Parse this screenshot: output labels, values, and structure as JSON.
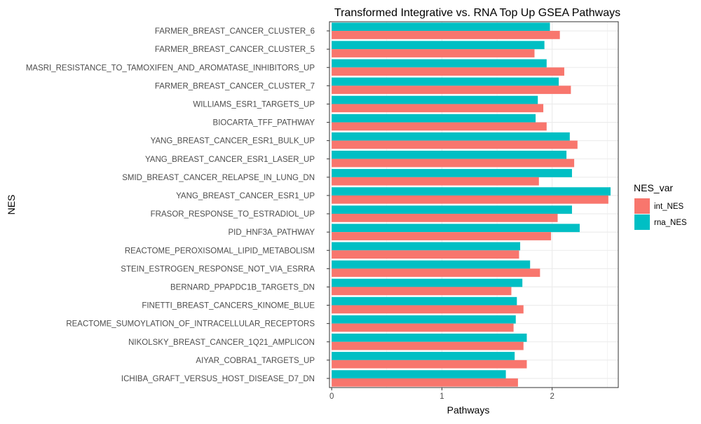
{
  "chart_data": {
    "type": "bar",
    "orientation": "horizontal",
    "title": "Transformed Integrative vs. RNA Top Up GSEA Pathways",
    "xlabel": "Pathways",
    "ylabel": "NES",
    "xlim": [
      -0.02,
      2.6
    ],
    "xticks": [
      0,
      1,
      2
    ],
    "grid": true,
    "legend_position": "right",
    "legend_title": "NES_var",
    "categories": [
      "FARMER_BREAST_CANCER_CLUSTER_6",
      "FARMER_BREAST_CANCER_CLUSTER_5",
      "MASRI_RESISTANCE_TO_TAMOXIFEN_AND_AROMATASE_INHIBITORS_UP",
      "FARMER_BREAST_CANCER_CLUSTER_7",
      "WILLIAMS_ESR1_TARGETS_UP",
      "BIOCARTA_TFF_PATHWAY",
      "YANG_BREAST_CANCER_ESR1_BULK_UP",
      "YANG_BREAST_CANCER_ESR1_LASER_UP",
      "SMID_BREAST_CANCER_RELAPSE_IN_LUNG_DN",
      "YANG_BREAST_CANCER_ESR1_UP",
      "FRASOR_RESPONSE_TO_ESTRADIOL_UP",
      "PID_HNF3A_PATHWAY",
      "REACTOME_PEROXISOMAL_LIPID_METABOLISM",
      "STEIN_ESTROGEN_RESPONSE_NOT_VIA_ESRRA",
      "BERNARD_PPAPDC1B_TARGETS_DN",
      "FINETTI_BREAST_CANCERS_KINOME_BLUE",
      "REACTOME_SUMOYLATION_OF_INTRACELLULAR_RECEPTORS",
      "NIKOLSKY_BREAST_CANCER_1Q21_AMPLICON",
      "AIYAR_COBRA1_TARGETS_UP",
      "ICHIBA_GRAFT_VERSUS_HOST_DISEASE_D7_DN"
    ],
    "series": [
      {
        "name": "int_NES",
        "color": "#F8766D",
        "values": [
          2.07,
          1.84,
          2.11,
          2.17,
          1.92,
          1.95,
          2.23,
          2.2,
          1.88,
          2.51,
          2.05,
          1.99,
          1.7,
          1.89,
          1.63,
          1.74,
          1.65,
          1.74,
          1.77,
          1.69
        ]
      },
      {
        "name": "rna_NES",
        "color": "#00BFC4",
        "values": [
          1.98,
          1.93,
          1.95,
          2.06,
          1.87,
          1.85,
          2.16,
          2.13,
          2.18,
          2.53,
          2.18,
          2.25,
          1.71,
          1.8,
          1.73,
          1.68,
          1.67,
          1.77,
          1.66,
          1.58
        ]
      }
    ]
  }
}
